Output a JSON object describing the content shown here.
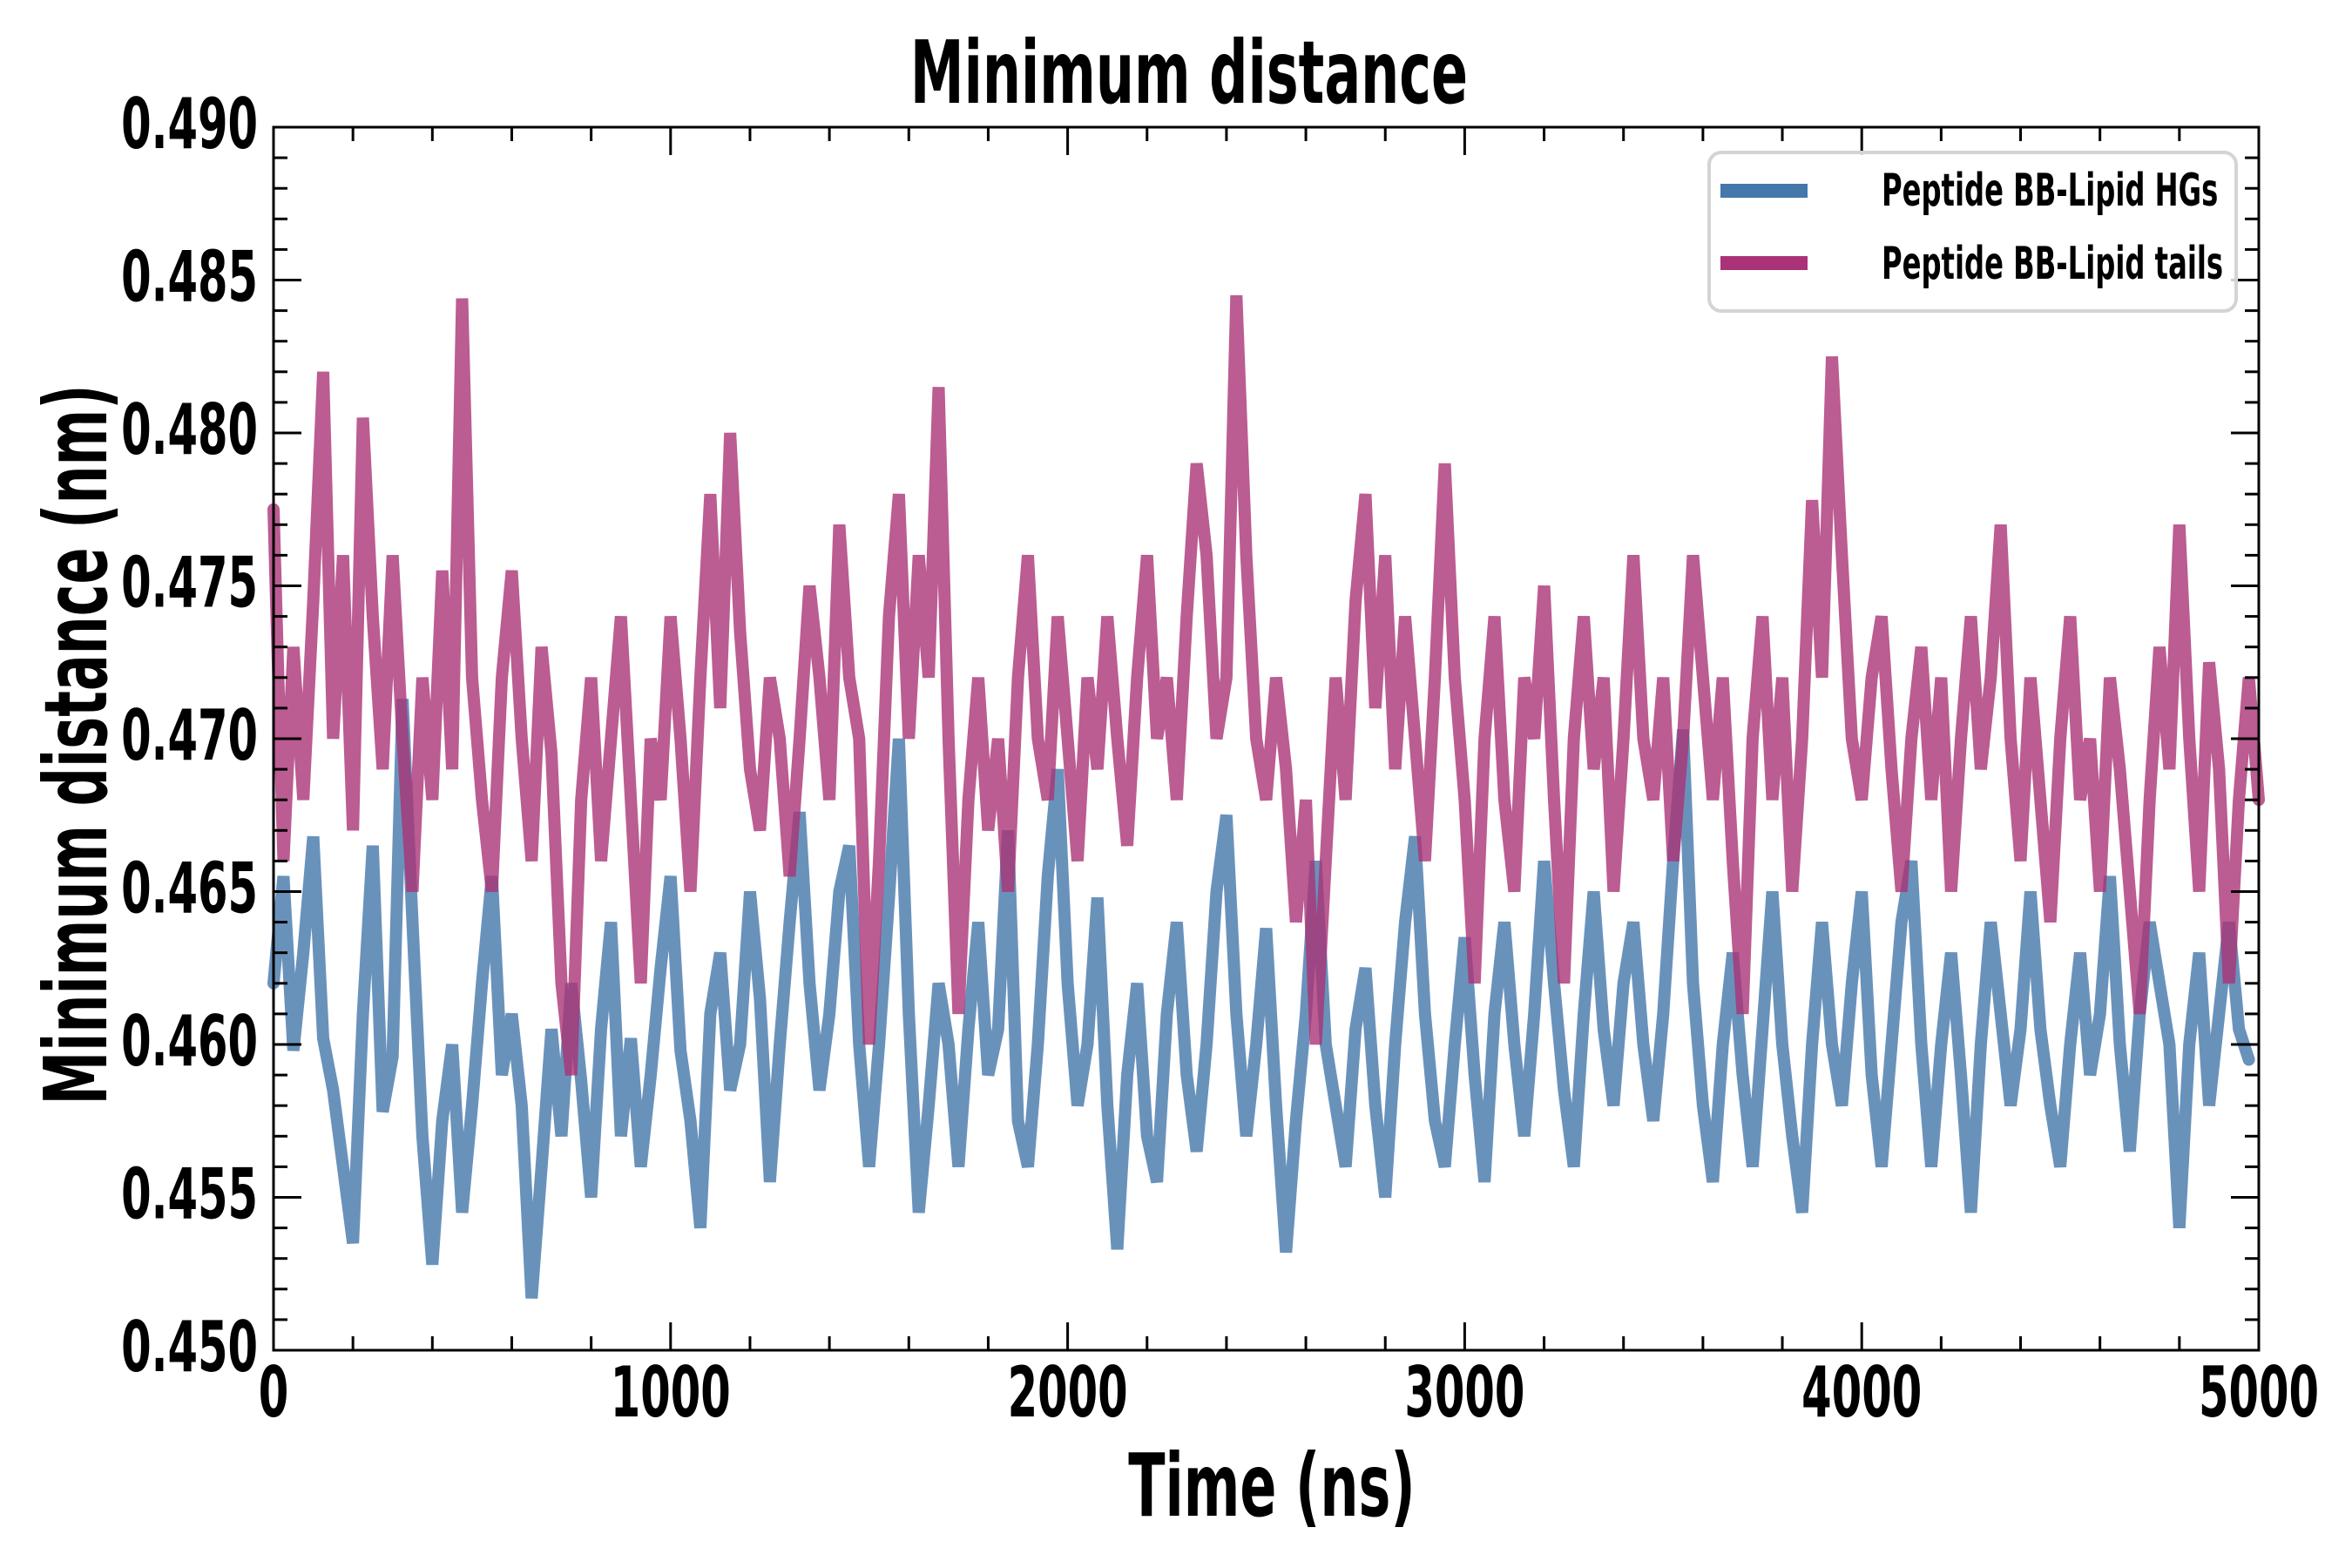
{
  "chart_data": {
    "type": "line",
    "title": "Minimum distance",
    "xlabel": "Time (ns)",
    "ylabel": "Minimum distance (nm)",
    "xlim": [
      0,
      5000
    ],
    "ylim": [
      0.45,
      0.49
    ],
    "x_ticks": [
      0,
      1000,
      2000,
      3000,
      4000,
      5000
    ],
    "x_tick_labels": [
      "0",
      "1000",
      "2000",
      "3000",
      "4000",
      "5000"
    ],
    "x_minor_step": 200,
    "y_ticks": [
      0.45,
      0.455,
      0.46,
      0.465,
      0.47,
      0.475,
      0.48,
      0.485,
      0.49
    ],
    "y_tick_labels": [
      "0.450",
      "0.455",
      "0.460",
      "0.465",
      "0.470",
      "0.475",
      "0.480",
      "0.485",
      "0.490"
    ],
    "y_minor_step": 0.001,
    "grid": false,
    "legend_position": "top-right",
    "x_step": 25,
    "series": [
      {
        "name": "Peptide BB-Lipid HGs",
        "color": "#4477aa",
        "values": [
          0.462,
          0.4655,
          0.4598,
          0.463,
          0.4668,
          0.4602,
          0.4585,
          0.456,
          0.4535,
          0.461,
          0.4665,
          0.4578,
          0.4596,
          0.4713,
          0.464,
          0.457,
          0.4528,
          0.4575,
          0.46,
          0.4545,
          0.458,
          0.462,
          0.4655,
          0.459,
          0.461,
          0.458,
          0.4517,
          0.456,
          0.4605,
          0.457,
          0.462,
          0.4588,
          0.455,
          0.4605,
          0.464,
          0.457,
          0.4602,
          0.456,
          0.459,
          0.4625,
          0.4655,
          0.4598,
          0.4575,
          0.454,
          0.461,
          0.463,
          0.4585,
          0.46,
          0.465,
          0.4615,
          0.4555,
          0.46,
          0.464,
          0.4676,
          0.462,
          0.4585,
          0.461,
          0.465,
          0.4665,
          0.46,
          0.456,
          0.46,
          0.4648,
          0.47,
          0.461,
          0.4545,
          0.458,
          0.462,
          0.46,
          0.456,
          0.4605,
          0.464,
          0.459,
          0.4605,
          0.467,
          0.4575,
          0.456,
          0.46,
          0.4655,
          0.469,
          0.462,
          0.458,
          0.46,
          0.4648,
          0.458,
          0.4533,
          0.459,
          0.462,
          0.457,
          0.4555,
          0.461,
          0.464,
          0.459,
          0.4565,
          0.46,
          0.465,
          0.4675,
          0.461,
          0.457,
          0.46,
          0.4638,
          0.458,
          0.4532,
          0.4575,
          0.461,
          0.466,
          0.46,
          0.458,
          0.456,
          0.4605,
          0.4625,
          0.458,
          0.455,
          0.46,
          0.464,
          0.4668,
          0.461,
          0.4575,
          0.456,
          0.46,
          0.4635,
          0.459,
          0.4555,
          0.461,
          0.464,
          0.46,
          0.457,
          0.461,
          0.466,
          0.462,
          0.4585,
          0.456,
          0.461,
          0.465,
          0.4605,
          0.458,
          0.462,
          0.464,
          0.46,
          0.4575,
          0.461,
          0.466,
          0.4703,
          0.462,
          0.458,
          0.4555,
          0.46,
          0.463,
          0.459,
          0.456,
          0.4605,
          0.465,
          0.46,
          0.457,
          0.4545,
          0.46,
          0.464,
          0.46,
          0.458,
          0.462,
          0.465,
          0.459,
          0.456,
          0.46,
          0.464,
          0.466,
          0.46,
          0.456,
          0.46,
          0.463,
          0.459,
          0.4545,
          0.46,
          0.464,
          0.461,
          0.458,
          0.4605,
          0.465,
          0.4605,
          0.458,
          0.456,
          0.46,
          0.463,
          0.459,
          0.461,
          0.4655,
          0.46,
          0.4565,
          0.461,
          0.464,
          0.462,
          0.46,
          0.454,
          0.46,
          0.463,
          0.458,
          0.461,
          0.464,
          0.4605,
          0.4595
        ]
      },
      {
        "name": "Peptide BB-Lipid tails",
        "color": "#aa3377",
        "values": [
          0.4775,
          0.466,
          0.473,
          0.468,
          0.4745,
          0.482,
          0.47,
          0.476,
          0.467,
          0.4805,
          0.474,
          0.469,
          0.476,
          0.47,
          0.465,
          0.472,
          0.468,
          0.4755,
          0.469,
          0.4844,
          0.472,
          0.468,
          0.465,
          0.472,
          0.4755,
          0.47,
          0.466,
          0.473,
          0.4695,
          0.462,
          0.459,
          0.468,
          0.472,
          0.466,
          0.47,
          0.474,
          0.468,
          0.462,
          0.47,
          0.468,
          0.474,
          0.47,
          0.465,
          0.472,
          0.478,
          0.471,
          0.48,
          0.4735,
          0.469,
          0.467,
          0.472,
          0.47,
          0.4655,
          0.47,
          0.475,
          0.472,
          0.468,
          0.477,
          0.472,
          0.47,
          0.46,
          0.466,
          0.474,
          0.478,
          0.47,
          0.476,
          0.472,
          0.4815,
          0.47,
          0.461,
          0.468,
          0.472,
          0.467,
          0.47,
          0.465,
          0.472,
          0.476,
          0.47,
          0.468,
          0.474,
          0.47,
          0.466,
          0.472,
          0.469,
          0.474,
          0.47,
          0.4665,
          0.472,
          0.476,
          0.47,
          0.472,
          0.468,
          0.474,
          0.479,
          0.476,
          0.47,
          0.472,
          0.4845,
          0.476,
          0.47,
          0.468,
          0.472,
          0.469,
          0.464,
          0.468,
          0.46,
          0.466,
          0.472,
          0.468,
          0.4745,
          0.478,
          0.471,
          0.476,
          0.469,
          0.474,
          0.47,
          0.466,
          0.472,
          0.479,
          0.472,
          0.468,
          0.462,
          0.47,
          0.474,
          0.468,
          0.465,
          0.472,
          0.47,
          0.475,
          0.468,
          0.462,
          0.47,
          0.474,
          0.469,
          0.472,
          0.465,
          0.47,
          0.476,
          0.47,
          0.468,
          0.472,
          0.466,
          0.47,
          0.476,
          0.472,
          0.468,
          0.472,
          0.466,
          0.461,
          0.47,
          0.474,
          0.468,
          0.472,
          0.465,
          0.47,
          0.4778,
          0.472,
          0.4825,
          0.476,
          0.47,
          0.468,
          0.472,
          0.474,
          0.469,
          0.465,
          0.47,
          0.473,
          0.468,
          0.472,
          0.465,
          0.47,
          0.474,
          0.469,
          0.472,
          0.477,
          0.47,
          0.466,
          0.472,
          0.468,
          0.464,
          0.47,
          0.474,
          0.468,
          0.47,
          0.465,
          0.472,
          0.469,
          0.465,
          0.461,
          0.468,
          0.473,
          0.469,
          0.477,
          0.47,
          0.465,
          0.4725,
          0.469,
          0.462,
          0.468,
          0.472,
          0.468
        ]
      }
    ]
  }
}
